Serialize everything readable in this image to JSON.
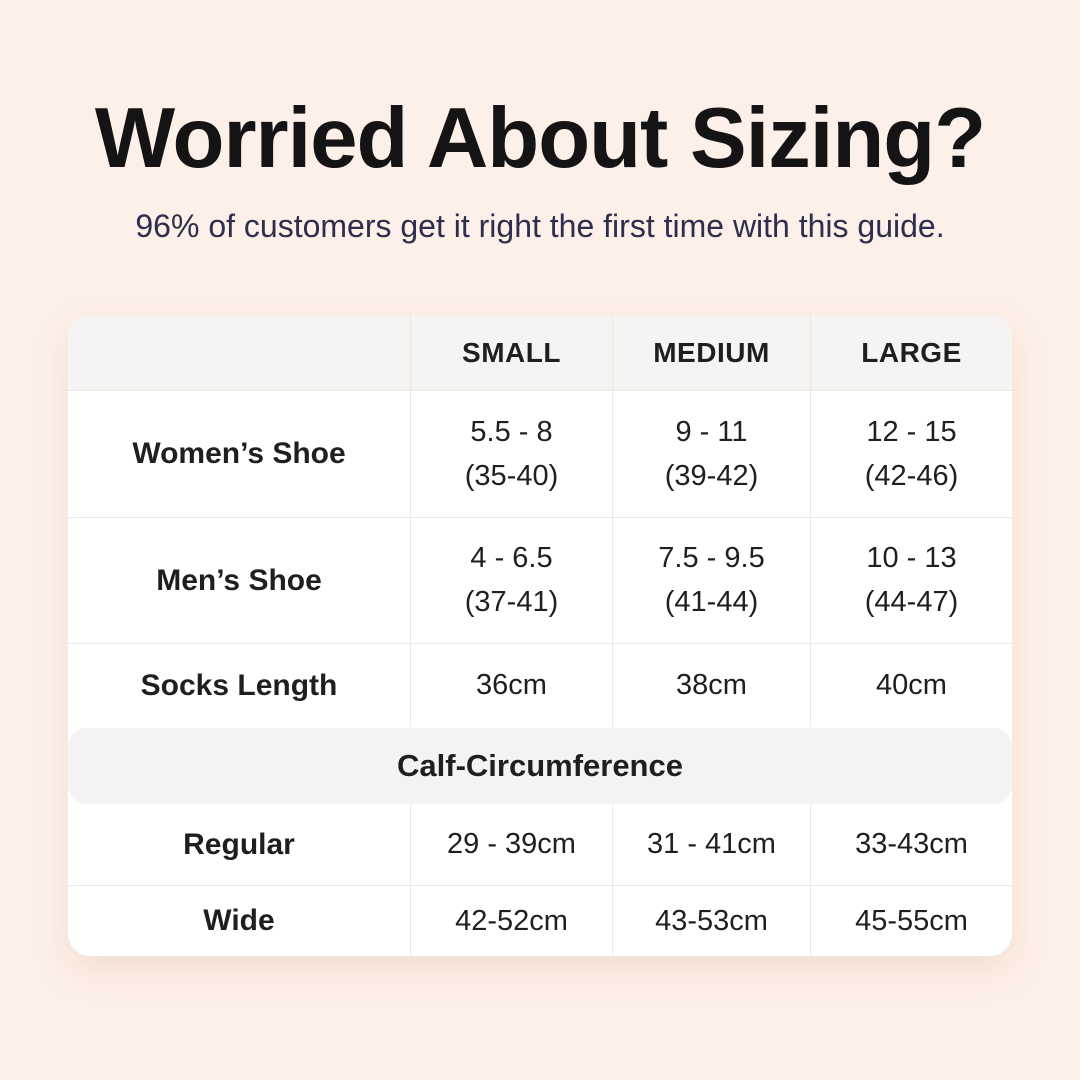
{
  "page": {
    "background_color": "#fdf0e8",
    "title": "Worried About Sizing?",
    "title_color": "#141414",
    "subtitle": "96% of customers get it right the first time with this guide.",
    "subtitle_color": "#2e2e4d"
  },
  "table": {
    "columns": [
      "",
      "SMALL",
      "MEDIUM",
      "LARGE"
    ],
    "rows": [
      {
        "label": "Women’s Shoe",
        "cells": [
          {
            "line1": "5.5 - 8",
            "line2": "(35-40)"
          },
          {
            "line1": "9 - 11",
            "line2": "(39-42)"
          },
          {
            "line1": "12 - 15",
            "line2": "(42-46)"
          }
        ]
      },
      {
        "label": "Men’s Shoe",
        "cells": [
          {
            "line1": "4 - 6.5",
            "line2": "(37-41)"
          },
          {
            "line1": "7.5 - 9.5",
            "line2": "(41-44)"
          },
          {
            "line1": "10 - 13",
            "line2": "(44-47)"
          }
        ]
      },
      {
        "label": "Socks Length",
        "cells": [
          {
            "line1": "36cm"
          },
          {
            "line1": "38cm"
          },
          {
            "line1": "40cm"
          }
        ]
      }
    ],
    "calf_section": {
      "header": "Calf-Circumference",
      "rows": [
        {
          "label": "Regular",
          "cells": [
            {
              "line1": "29 - 39cm"
            },
            {
              "line1": "31 - 41cm"
            },
            {
              "line1": "33-43cm"
            }
          ]
        },
        {
          "label": "Wide",
          "cells": [
            {
              "line1": "42-52cm"
            },
            {
              "line1": "43-53cm"
            },
            {
              "line1": "45-55cm"
            }
          ]
        }
      ]
    }
  },
  "chart_data": {
    "type": "table",
    "title": "Worried About Sizing?",
    "subtitle": "96% of customers get it right the first time with this guide.",
    "columns": [
      "",
      "SMALL",
      "MEDIUM",
      "LARGE"
    ],
    "rows": [
      [
        "Women’s Shoe",
        "5.5 - 8 (35-40)",
        "9 - 11 (39-42)",
        "12 - 15 (42-46)"
      ],
      [
        "Men’s Shoe",
        "4 - 6.5 (37-41)",
        "7.5 - 9.5 (41-44)",
        "10 - 13 (44-47)"
      ],
      [
        "Socks Length",
        "36cm",
        "38cm",
        "40cm"
      ],
      [
        "Calf-Circumference (section header, spans all columns)",
        "",
        "",
        ""
      ],
      [
        "Regular",
        "29 - 39cm",
        "31 - 41cm",
        "33-43cm"
      ],
      [
        "Wide",
        "42-52cm",
        "43-53cm",
        "45-55cm"
      ]
    ]
  }
}
